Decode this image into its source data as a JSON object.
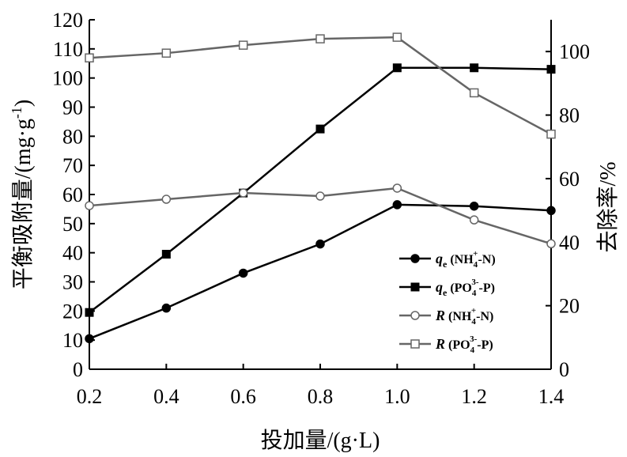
{
  "chart_data": {
    "type": "line",
    "x": [
      0.2,
      0.4,
      0.6,
      0.8,
      1.0,
      1.2,
      1.4
    ],
    "xlim": [
      0.2,
      1.4
    ],
    "x_ticks": [
      "0.2",
      "0.4",
      "0.6",
      "0.8",
      "1.0",
      "1.2",
      "1.4"
    ],
    "xlabel": "投加量/(g·L)",
    "ylabel_left": "平衡吸附量/(mg·g",
    "ylabel_left_sup": "-1",
    "ylabel_left_close": ")",
    "ylim_left": [
      0,
      120
    ],
    "y_ticks_left": [
      "0",
      "10",
      "20",
      "30",
      "40",
      "50",
      "60",
      "70",
      "80",
      "90",
      "100",
      "110",
      "120"
    ],
    "ylabel_right": "去除率/%",
    "ylim_right": [
      0,
      110
    ],
    "y_ticks_right": [
      "0",
      "20",
      "40",
      "60",
      "80",
      "100"
    ],
    "grid": false,
    "legend_position": "lower-right",
    "series": [
      {
        "name_main": "q",
        "name_sub": "e",
        "name_open": " (NH",
        "name_sub2": "4",
        "name_sup": "+",
        "name_close": "-N)",
        "axis": "left",
        "marker": "filled-circle",
        "color": "#000000",
        "values": [
          10.5,
          21,
          33,
          43,
          56.5,
          56,
          54.5
        ]
      },
      {
        "name_main": "q",
        "name_sub": "e",
        "name_open": " (PO",
        "name_sub2": "4",
        "name_sup": "3-",
        "name_close": "-P)",
        "axis": "left",
        "marker": "filled-square",
        "color": "#000000",
        "values": [
          19.5,
          39.5,
          60.5,
          82.5,
          103.5,
          103.5,
          103
        ]
      },
      {
        "name_main": "R",
        "name_sub": "",
        "name_open": " (NH",
        "name_sub2": "4",
        "name_sup": "+",
        "name_close": "-N)",
        "axis": "right",
        "marker": "open-circle",
        "color": "#666666",
        "values": [
          51.5,
          53.5,
          55.5,
          54.5,
          57,
          47,
          39.5
        ]
      },
      {
        "name_main": "R",
        "name_sub": "",
        "name_open": " (PO",
        "name_sub2": "4",
        "name_sup": "3-",
        "name_close": "-P)",
        "axis": "right",
        "marker": "open-square",
        "color": "#666666",
        "values": [
          98,
          99.5,
          102,
          104,
          104.5,
          87,
          74
        ]
      }
    ]
  }
}
